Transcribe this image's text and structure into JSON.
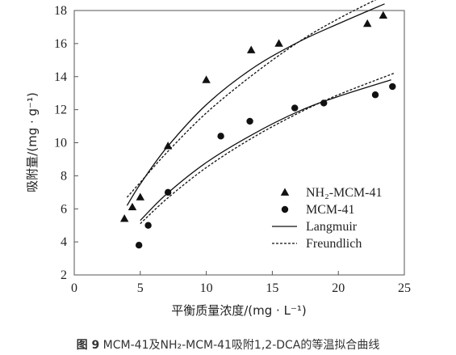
{
  "chart_data": {
    "type": "scatter",
    "xlabel": "平衡质量浓度/(mg · L⁻¹)",
    "ylabel": "吸附量/(mg · g⁻¹)",
    "xlim": [
      0,
      25
    ],
    "ylim": [
      2,
      18
    ],
    "xticks": [
      0,
      5,
      10,
      15,
      20,
      25
    ],
    "yticks": [
      2,
      4,
      6,
      8,
      10,
      12,
      14,
      16,
      18
    ],
    "grid": false,
    "legend_position": "right-center",
    "series": [
      {
        "name": "NH₂-MCM-41",
        "marker": "triangle",
        "x": [
          3.8,
          4.4,
          5.0,
          7.1,
          10.0,
          13.4,
          15.5,
          22.2,
          23.4
        ],
        "y": [
          5.4,
          6.1,
          6.7,
          9.8,
          13.8,
          15.6,
          16.0,
          17.2,
          17.7
        ]
      },
      {
        "name": "MCM-41",
        "marker": "circle",
        "x": [
          4.9,
          5.6,
          7.1,
          11.1,
          13.3,
          16.7,
          18.9,
          22.8,
          24.1
        ],
        "y": [
          3.8,
          5.0,
          7.0,
          10.4,
          11.3,
          12.1,
          12.4,
          12.9,
          13.4
        ]
      }
    ],
    "fits": [
      {
        "name": "Langmuir",
        "style": "solid",
        "curves": [
          {
            "x": [
              4,
              5,
              7,
              10,
              13.5,
              17,
              20,
              23.5
            ],
            "y": [
              6.2,
              7.5,
              9.7,
              12.3,
              14.5,
              16.1,
              17.2,
              18.4
            ]
          },
          {
            "x": [
              5,
              7,
              10,
              13.5,
              17,
              20,
              24
            ],
            "y": [
              5.3,
              6.9,
              8.8,
              10.5,
              11.9,
              12.8,
              13.8
            ]
          }
        ]
      },
      {
        "name": "Freundlich",
        "style": "dashed",
        "curves": [
          {
            "x": [
              4,
              5,
              7,
              10,
              13.5,
              17,
              20,
              23.7
            ],
            "y": [
              6.7,
              7.6,
              9.4,
              11.8,
              14.1,
              16.1,
              17.5,
              19.0
            ]
          },
          {
            "x": [
              5,
              7,
              10,
              13.5,
              17,
              20,
              24.2
            ],
            "y": [
              5.1,
              6.6,
              8.5,
              10.3,
              11.8,
              12.9,
              14.2
            ]
          }
        ]
      }
    ],
    "legend": [
      {
        "label": "NH₂-MCM-41",
        "kind": "triangle"
      },
      {
        "label": "MCM-41",
        "kind": "circle"
      },
      {
        "label": "Langmuir",
        "kind": "solid-line"
      },
      {
        "label": "Freundlich",
        "kind": "dashed-line"
      }
    ]
  },
  "caption": {
    "fig_label": "图 9",
    "text": "MCM-41及NH₂-MCM-41吸附1,2-DCA的等温拟合曲线"
  }
}
